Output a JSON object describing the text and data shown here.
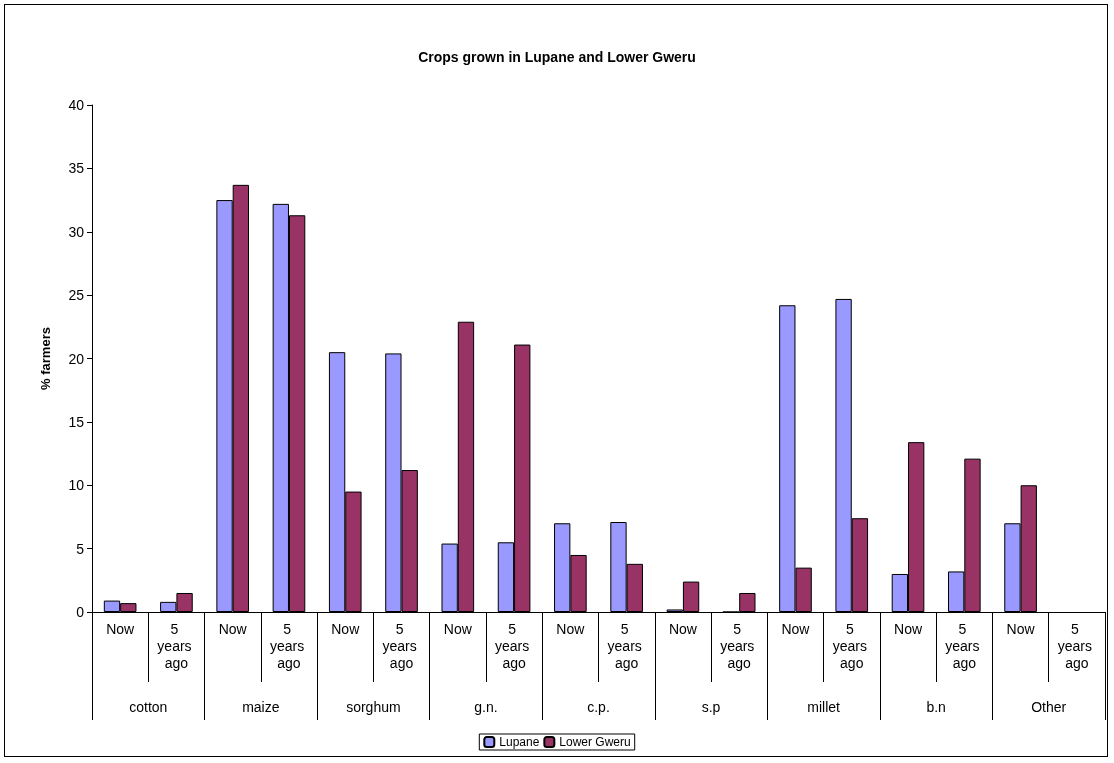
{
  "chart_data": {
    "type": "bar",
    "title": "Crops grown in Lupane and Lower Gweru",
    "ylabel": "% farmers",
    "categories": [
      "Now",
      "5 years ago",
      "Now",
      "5 years ago",
      "Now",
      "5 years ago",
      "Now",
      "5 years ago",
      "Now",
      "5 years ago",
      "Now",
      "5 years ago",
      "Now",
      "5 years ago",
      "Now",
      "5 years ago",
      "Now",
      "5 years ago"
    ],
    "annotations": [
      "cotton",
      "maize",
      "sorghum",
      "g.n.",
      "c.p.",
      "s.p",
      "millet",
      "b.n",
      "Other"
    ],
    "series": [
      {
        "name": "Lupane",
        "color": "#9999ff",
        "values": [
          0.9,
          0.8,
          32.5,
          32.2,
          20.5,
          20.4,
          5.4,
          5.5,
          7.0,
          7.1,
          0.2,
          0,
          24.2,
          24.7,
          3.0,
          3.2,
          7.0,
          null
        ]
      },
      {
        "name": "Lower Gweru",
        "color": "#993366",
        "values": [
          0.7,
          1.5,
          33.7,
          31.3,
          9.5,
          11.2,
          22.9,
          21.1,
          4.5,
          3.8,
          2.4,
          1.5,
          3.5,
          7.4,
          13.4,
          12.1,
          10.0,
          null
        ]
      }
    ],
    "ylim": [
      0,
      40
    ],
    "yticks": [
      0,
      5,
      10,
      15,
      20,
      25,
      30,
      35,
      40
    ],
    "legend": "bottom"
  }
}
